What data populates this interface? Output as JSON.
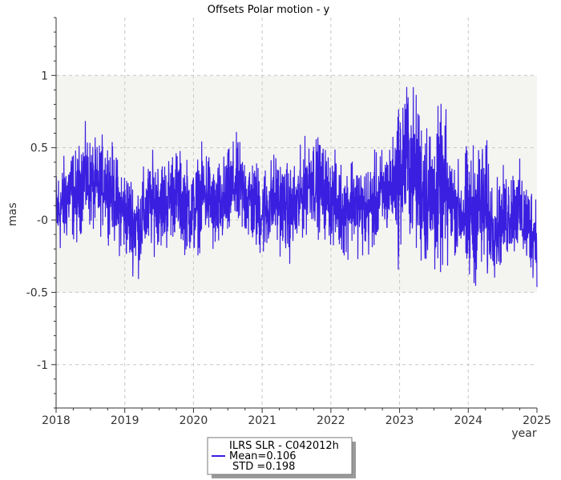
{
  "chart_data": {
    "type": "line",
    "title": "Offsets Polar motion - y",
    "xlabel": "year",
    "ylabel": "mas",
    "xlim": [
      2018,
      2025
    ],
    "ylim": [
      -1.3,
      1.4
    ],
    "x_ticks": [
      2018,
      2019,
      2020,
      2021,
      2022,
      2023,
      2024,
      2025
    ],
    "x_tick_labels": [
      "2018",
      "2019",
      "2020",
      "2021",
      "2022",
      "2023",
      "2024",
      "2025"
    ],
    "y_ticks": [
      1,
      0.5,
      0,
      -0.5,
      -1
    ],
    "y_tick_labels": [
      "1",
      "0.5",
      "-0",
      "-0.5",
      "-1"
    ],
    "band": [
      -0.5,
      1.0
    ],
    "grid": true,
    "legend_position": "bottom-center",
    "series": [
      {
        "name": "ILRS SLR - C042012h",
        "color": "#3a1fe0",
        "mean_label": "Mean=0.106",
        "std_label": "STD =0.198",
        "mean": 0.106,
        "std": 0.198,
        "x": [
          2018.0,
          2018.1,
          2018.2,
          2018.3,
          2018.4,
          2018.5,
          2018.6,
          2018.7,
          2018.8,
          2018.9,
          2019.0,
          2019.1,
          2019.2,
          2019.3,
          2019.4,
          2019.5,
          2019.6,
          2019.7,
          2019.8,
          2019.9,
          2020.0,
          2020.1,
          2020.2,
          2020.3,
          2020.4,
          2020.5,
          2020.6,
          2020.7,
          2020.8,
          2020.9,
          2021.0,
          2021.1,
          2021.2,
          2021.3,
          2021.4,
          2021.5,
          2021.6,
          2021.7,
          2021.8,
          2021.9,
          2022.0,
          2022.1,
          2022.2,
          2022.3,
          2022.4,
          2022.5,
          2022.6,
          2022.7,
          2022.8,
          2022.9,
          2023.0,
          2023.1,
          2023.2,
          2023.3,
          2023.4,
          2023.5,
          2023.6,
          2023.7,
          2023.8,
          2023.9,
          2024.0,
          2024.1,
          2024.2,
          2024.3,
          2024.4,
          2024.5,
          2024.6,
          2024.7,
          2024.8,
          2024.9,
          2025.0
        ],
        "values": [
          0.05,
          0.1,
          0.2,
          0.15,
          0.3,
          0.25,
          0.2,
          0.28,
          0.22,
          0.1,
          0.05,
          0.0,
          -0.05,
          0.05,
          0.12,
          0.15,
          0.1,
          0.2,
          0.15,
          0.1,
          0.05,
          0.15,
          0.2,
          0.05,
          0.1,
          0.15,
          0.25,
          0.2,
          0.15,
          0.1,
          0.05,
          0.1,
          0.15,
          0.1,
          0.05,
          0.08,
          0.2,
          0.3,
          0.25,
          0.2,
          0.15,
          0.1,
          0.05,
          0.15,
          0.1,
          0.05,
          0.1,
          0.15,
          0.2,
          0.25,
          0.3,
          0.45,
          0.35,
          0.25,
          0.2,
          0.15,
          0.2,
          0.15,
          0.1,
          0.05,
          0.0,
          0.05,
          0.1,
          0.0,
          -0.05,
          0.0,
          0.05,
          0.1,
          0.0,
          -0.05,
          -0.1
        ]
      }
    ]
  }
}
